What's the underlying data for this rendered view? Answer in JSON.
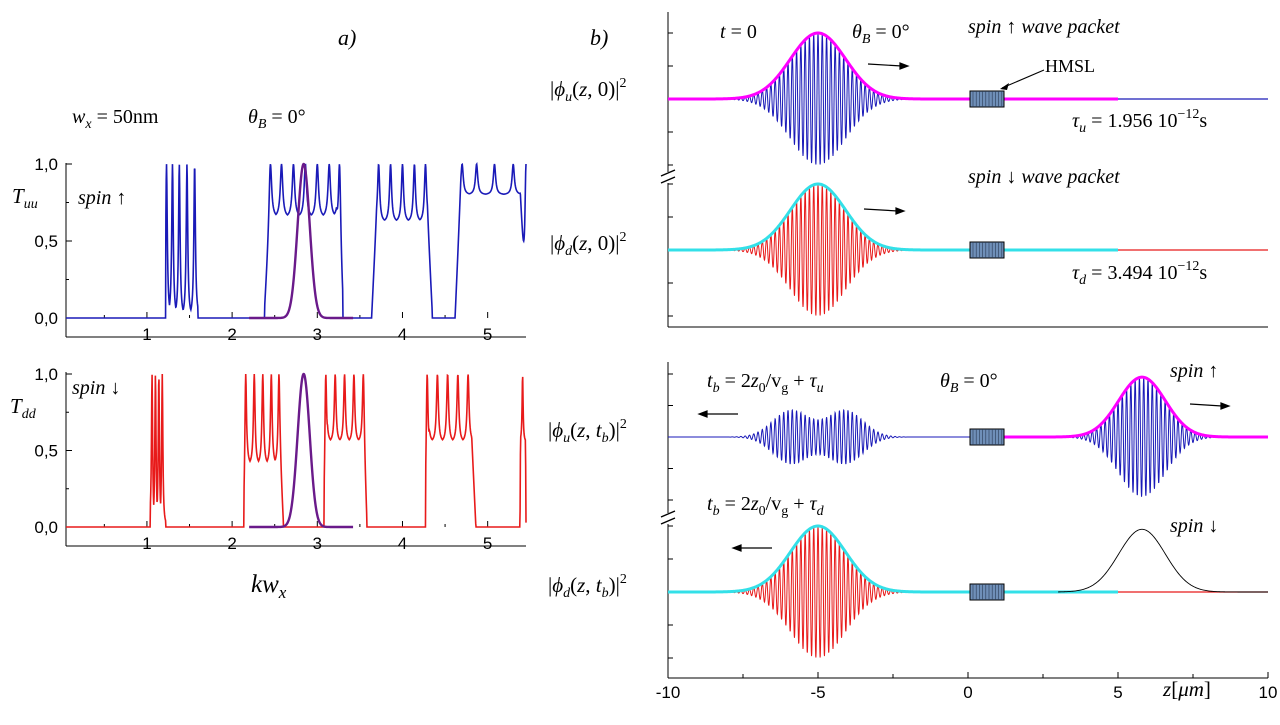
{
  "panel_a": {
    "label": "a)",
    "wx_text": "w_x = 50nm",
    "theta_text": "θ_B = 0°",
    "xlabel": "kw_x",
    "top": {
      "ylabel": "T_uu",
      "spin_label": "spin ↑"
    },
    "bottom": {
      "ylabel": "T_dd",
      "spin_label": "spin ↓"
    }
  },
  "panel_b": {
    "label": "b)",
    "t0_text": "t = 0",
    "theta_text": "θ_B = 0°",
    "hmsl_label": "HMSL",
    "xlabel": "z[μm]",
    "traces": [
      {
        "ylabel": "|ϕ_u(z,0)|²",
        "note": "spin ↑ wave packet",
        "tau": "τ_u = 1.956 10⁻¹²s"
      },
      {
        "ylabel": "|ϕ_d(z,0)|²",
        "note": "spin ↓ wave packet",
        "tau": "τ_d = 3.494 10⁻¹²s"
      },
      {
        "ylabel": "|ϕ_u(z,t_b)|²",
        "time": "t_b = 2z₀/v_g + τ_u",
        "theta": "θ_B = 0°",
        "spin": "spin ↑"
      },
      {
        "ylabel": "|ϕ_d(z,t_b)|²",
        "time": "t_b = 2z₀/v_g + τ_d",
        "spin": "spin ↓"
      }
    ]
  },
  "colors": {
    "spin_up": "#1a1ab8",
    "spin_down": "#e81a1a",
    "envelope_up": "#ff00ff",
    "envelope_down": "#33e0e8",
    "gaussian_filter": "#6a1a8a",
    "hmsl_fill": "#6f8fb8"
  },
  "chart_data": [
    {
      "type": "line",
      "title": "",
      "xlabel": "kw_x",
      "ylabel": "T_uu",
      "xlim": [
        0.05,
        5.45
      ],
      "ylim": [
        0,
        1.0
      ],
      "x_ticks": [
        "1",
        "2",
        "3",
        "4",
        "5"
      ],
      "y_ticks": [
        "0,0",
        "0,5",
        "1,0"
      ],
      "series": [
        {
          "name": "spin ↑",
          "color": "#1a1ab8",
          "bands": [
            {
              "x_range": [
                1.22,
                1.6
              ],
              "peaks": [
                1.23,
                1.3,
                1.38,
                1.47,
                1.56
              ],
              "floor": 0.0
            },
            {
              "x_range": [
                2.38,
                3.3
              ],
              "peaks": [
                2.45,
                2.58,
                2.72,
                2.86,
                3.0,
                3.14,
                3.26
              ],
              "floor": 0.65
            },
            {
              "x_range": [
                3.64,
                4.35
              ],
              "peaks": [
                3.72,
                3.86,
                4.0,
                4.14,
                4.27
              ],
              "floor": 0.62
            },
            {
              "x_range": [
                4.62,
                5.45
              ],
              "peaks": [
                4.7,
                4.87,
                5.08,
                5.3,
                5.45
              ],
              "floor": 0.8
            }
          ]
        }
      ]
    },
    {
      "type": "line",
      "title": "",
      "xlabel": "kw_x",
      "ylabel": "T_dd",
      "xlim": [
        0.05,
        5.45
      ],
      "ylim": [
        0,
        1.0
      ],
      "x_ticks": [
        "1",
        "2",
        "3",
        "4",
        "5"
      ],
      "y_ticks": [
        "0,0",
        "0,5",
        "1,0"
      ],
      "series": [
        {
          "name": "spin ↓",
          "color": "#e81a1a",
          "bands": [
            {
              "x_range": [
                1.04,
                1.22
              ],
              "peaks": [
                1.06,
                1.1,
                1.14,
                1.18
              ],
              "floor": 0.0
            },
            {
              "x_range": [
                2.14,
                2.6
              ],
              "peaks": [
                2.16,
                2.26,
                2.36,
                2.46,
                2.55
              ],
              "floor": 0.4
            },
            {
              "x_range": [
                3.08,
                3.58
              ],
              "peaks": [
                3.1,
                3.21,
                3.32,
                3.43,
                3.54
              ],
              "floor": 0.55
            },
            {
              "x_range": [
                4.27,
                4.86
              ],
              "peaks": [
                4.29,
                4.41,
                4.53,
                4.65,
                4.77
              ],
              "floor": 0.55
            },
            {
              "x_range": [
                5.38,
                5.45
              ],
              "peaks": [
                5.41
              ],
              "floor": 0.55
            }
          ]
        }
      ]
    },
    {
      "type": "line",
      "title": "",
      "xlabel": "z[μm]",
      "xlim": [
        -10,
        10
      ],
      "x_ticks": [
        "-10",
        "-5",
        "0",
        "5",
        "10"
      ],
      "ylim": [
        -1,
        1
      ],
      "hmsl_range": [
        0,
        1.2
      ],
      "traces": [
        {
          "ylabel": "|ϕ_u(z,0)|²",
          "oscillation_color": "#1a1ab8",
          "envelope_color": "#ff00ff",
          "packets": [
            {
              "center": -5,
              "width": 1.3,
              "amplitude": 1.0
            }
          ],
          "baseline_color_after": "#1a1ab8"
        },
        {
          "ylabel": "|ϕ_d(z,0)|²",
          "oscillation_color": "#e81a1a",
          "envelope_color": "#33e0e8",
          "packets": [
            {
              "center": -5,
              "width": 1.3,
              "amplitude": 1.0
            }
          ],
          "baseline_color_after": "#e81a1a"
        },
        {
          "ylabel": "|ϕ_u(z,t_b)|²",
          "oscillation_color": "#1a1ab8",
          "envelope_color": "#ff00ff",
          "packets": [
            {
              "center": -5,
              "width": 1.6,
              "amplitude": 0.45,
              "double": true
            },
            {
              "center": 5.8,
              "width": 1.1,
              "amplitude": 0.95
            }
          ]
        },
        {
          "ylabel": "|ϕ_d(z,t_b)|²",
          "oscillation_color": "#e81a1a",
          "envelope_color": "#33e0e8",
          "packets": [
            {
              "center": -5,
              "width": 1.3,
              "amplitude": 1.0
            }
          ],
          "ghost_packet": {
            "center": 5.8,
            "width": 1.1,
            "amplitude": 0.95
          }
        }
      ]
    }
  ]
}
